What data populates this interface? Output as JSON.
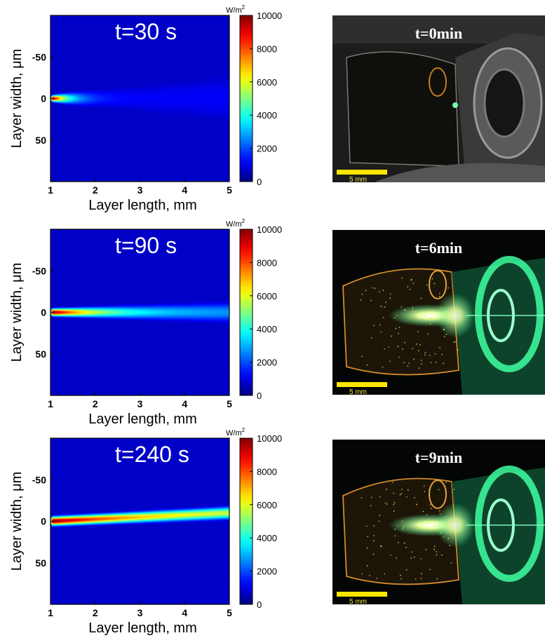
{
  "chart_data": [
    {
      "type": "heatmap",
      "panel_label": "t=30 s",
      "xlabel": "Layer length, mm",
      "ylabel": "Layer width, μm",
      "xlim": [
        1,
        5
      ],
      "ylim": [
        100,
        -100
      ],
      "xticks": [
        "1",
        "2",
        "3",
        "4",
        "5"
      ],
      "yticks": [
        "-50",
        "0",
        "50"
      ],
      "colorbar": {
        "unit": "W/m",
        "unit_sup": "2",
        "min": 0,
        "max": 10000,
        "ticks": [
          "10000",
          "8000",
          "6000",
          "4000",
          "2000",
          "0"
        ]
      },
      "beam": {
        "peak_value": 10000,
        "peak_length": 1.05,
        "decay_length_mm": 0.35,
        "half_width_um_start": 3,
        "half_width_um_end": 38,
        "tail_value": 1200
      }
    },
    {
      "type": "heatmap",
      "panel_label": "t=90 s",
      "xlabel": "Layer length, mm",
      "ylabel": "Layer width, μm",
      "xlim": [
        1,
        5
      ],
      "ylim": [
        100,
        -100
      ],
      "xticks": [
        "1",
        "2",
        "3",
        "4",
        "5"
      ],
      "yticks": [
        "-50",
        "0",
        "50"
      ],
      "colorbar": {
        "unit": "W/m",
        "unit_sup": "2",
        "min": 0,
        "max": 10000,
        "ticks": [
          "10000",
          "8000",
          "6000",
          "4000",
          "2000",
          "0"
        ]
      },
      "beam": {
        "peak_value": 10000,
        "peak_length": 1.05,
        "decay_length_mm": 1.1,
        "half_width_um_start": 4,
        "half_width_um_end": 12,
        "tail_value": 2500
      }
    },
    {
      "type": "heatmap",
      "panel_label": "t=240 s",
      "xlabel": "Layer length, mm",
      "ylabel": "Layer width, μm",
      "xlim": [
        1,
        5
      ],
      "ylim": [
        100,
        -100
      ],
      "xticks": [
        "1",
        "2",
        "3",
        "4",
        "5"
      ],
      "yticks": [
        "-50",
        "0",
        "50"
      ],
      "colorbar": {
        "unit": "W/m",
        "unit_sup": "2",
        "min": 0,
        "max": 10000,
        "ticks": [
          "10000",
          "8000",
          "6000",
          "4000",
          "2000",
          "0"
        ]
      },
      "beam": {
        "peak_value": 10000,
        "peak_length": 1.05,
        "decay_length_mm": 2.0,
        "half_width_um_start": 5,
        "half_width_um_end": 7,
        "tail_value": 5000,
        "tilt_um_per_mm": -2.5
      }
    }
  ],
  "photos": [
    {
      "label": "t=0min",
      "scale_bar": "5 mm",
      "state": "off"
    },
    {
      "label": "t=6min",
      "scale_bar": "5 mm",
      "state": "on"
    },
    {
      "label": "t=9min",
      "scale_bar": "5 mm",
      "state": "on"
    }
  ],
  "colors": {
    "cmap": [
      "#00008f",
      "#0000ff",
      "#00ffff",
      "#ffff00",
      "#ff0000",
      "#800000"
    ],
    "scale_bar": "#ffe600",
    "laser_green": "#3dffa0"
  }
}
